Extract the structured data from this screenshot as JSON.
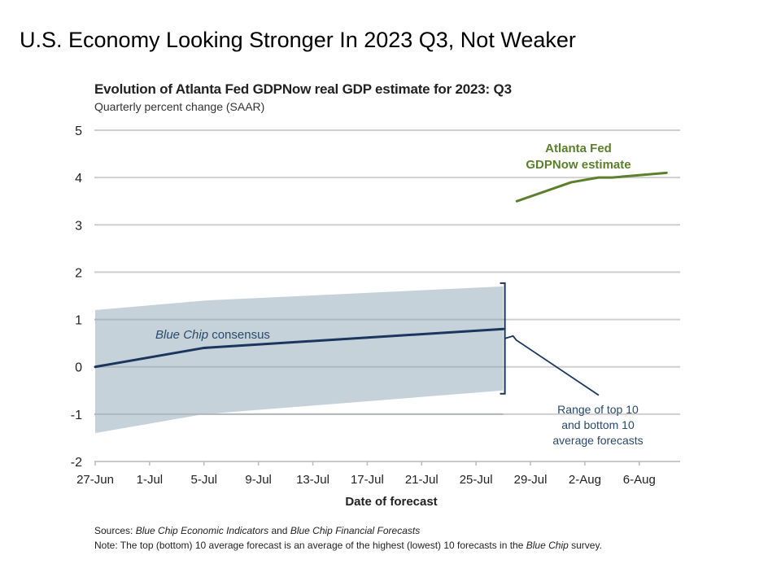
{
  "slide": {
    "title": "U.S. Economy Looking Stronger In 2023 Q3, Not Weaker"
  },
  "chart_data": {
    "type": "line",
    "title": "Evolution of Atlanta Fed GDPNow real GDP estimate for 2023: Q3",
    "subtitle": "Quarterly percent change (SAAR)",
    "xlabel": "Date of forecast",
    "ylabel": "",
    "ylim": [
      -2,
      5
    ],
    "yticks": [
      5,
      4,
      3,
      2,
      1,
      0,
      -1,
      -2
    ],
    "ytick_labels": [
      "5",
      "4",
      "3",
      "2",
      "1",
      "0",
      "-1",
      "-2"
    ],
    "xlim_days": [
      0,
      43
    ],
    "x_day_origin": "27-Jun",
    "xticks_days": [
      0,
      4,
      8,
      12,
      16,
      20,
      24,
      28,
      32,
      36,
      40
    ],
    "xtick_labels": [
      "27-Jun",
      "1-Jul",
      "5-Jul",
      "9-Jul",
      "13-Jul",
      "17-Jul",
      "21-Jul",
      "25-Jul",
      "29-Jul",
      "2-Aug",
      "6-Aug"
    ],
    "grid": true,
    "series": [
      {
        "name": "Blue Chip consensus",
        "type": "line",
        "color": "#1b365d",
        "x_days": [
          0,
          8,
          30
        ],
        "values": [
          0.0,
          0.4,
          0.8
        ]
      },
      {
        "name": "Range of top 10 and bottom 10 average forecasts",
        "type": "area-band",
        "color": "#c5d2da",
        "x_days": [
          0,
          8,
          30
        ],
        "upper": [
          1.2,
          1.4,
          1.7
        ],
        "lower": [
          -1.4,
          -1.0,
          -0.5
        ]
      },
      {
        "name": "Atlanta Fed GDPNow estimate",
        "type": "line",
        "color": "#5b7f2b",
        "x_days": [
          31,
          35,
          37,
          38,
          42
        ],
        "values": [
          3.5,
          3.9,
          4.0,
          4.0,
          4.1
        ]
      }
    ],
    "annotations": [
      {
        "id": "consensus",
        "lines": [
          "Blue Chip consensus"
        ],
        "italic_part": "Blue Chip",
        "color": "#2a4a6b"
      },
      {
        "id": "gdpnow",
        "lines": [
          "Atlanta Fed",
          "GDPNow estimate"
        ],
        "color": "#5b7f2b"
      },
      {
        "id": "range",
        "lines": [
          "Range of top 10",
          "and bottom 10",
          "average forecasts"
        ],
        "color": "#2a4a6b"
      }
    ]
  },
  "footer": {
    "sources_label": "Sources:",
    "sources_text_1": "Blue Chip Economic Indicators",
    "sources_and": " and ",
    "sources_text_2": "Blue Chip Financial Forecasts",
    "note_label": "Note:",
    "note_text_1": " The top (bottom) 10 average forecast is an average of the highest (lowest) 10 forecasts in the ",
    "note_italic": "Blue Chip",
    "note_text_2": " survey."
  }
}
